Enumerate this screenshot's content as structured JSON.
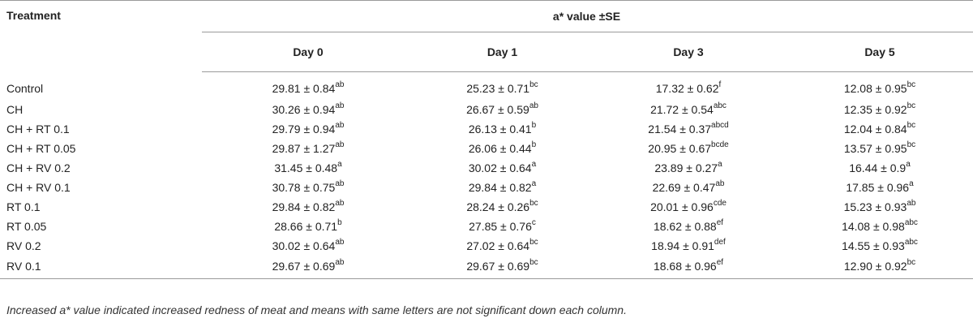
{
  "table": {
    "treatment_header": "Treatment",
    "group_header": "a* value ±SE",
    "day_headers": [
      "Day 0",
      "Day 1",
      "Day 3",
      "Day 5"
    ],
    "rows": [
      {
        "name": "Control",
        "cells": [
          {
            "v": "29.81 ± 0.84",
            "s": "ab"
          },
          {
            "v": "25.23 ± 0.71",
            "s": "bc"
          },
          {
            "v": "17.32 ± 0.62",
            "s": "f"
          },
          {
            "v": "12.08 ± 0.95",
            "s": "bc"
          }
        ]
      },
      {
        "name": "CH",
        "cells": [
          {
            "v": "30.26 ± 0.94",
            "s": "ab"
          },
          {
            "v": "26.67 ± 0.59",
            "s": "ab"
          },
          {
            "v": "21.72 ± 0.54",
            "s": "abc"
          },
          {
            "v": "12.35 ± 0.92",
            "s": "bc"
          }
        ]
      },
      {
        "name": "CH + RT 0.1",
        "cells": [
          {
            "v": "29.79 ± 0.94",
            "s": "ab"
          },
          {
            "v": "26.13 ± 0.41",
            "s": "b"
          },
          {
            "v": "21.54 ± 0.37",
            "s": "abcd"
          },
          {
            "v": "12.04 ± 0.84",
            "s": "bc"
          }
        ]
      },
      {
        "name": "CH + RT 0.05",
        "cells": [
          {
            "v": "29.87 ± 1.27",
            "s": "ab"
          },
          {
            "v": "26.06 ± 0.44",
            "s": "b"
          },
          {
            "v": "20.95 ± 0.67",
            "s": "bcde"
          },
          {
            "v": "13.57 ± 0.95",
            "s": "bc"
          }
        ]
      },
      {
        "name": "CH + RV 0.2",
        "cells": [
          {
            "v": "31.45 ± 0.48",
            "s": "a"
          },
          {
            "v": "30.02 ± 0.64",
            "s": "a"
          },
          {
            "v": "23.89 ± 0.27",
            "s": "a"
          },
          {
            "v": "16.44 ± 0.9",
            "s": "a"
          }
        ]
      },
      {
        "name": "CH + RV 0.1",
        "cells": [
          {
            "v": "30.78 ± 0.75",
            "s": "ab"
          },
          {
            "v": "29.84 ± 0.82",
            "s": "a"
          },
          {
            "v": "22.69 ± 0.47",
            "s": "ab"
          },
          {
            "v": "17.85 ± 0.96",
            "s": "a"
          }
        ]
      },
      {
        "name": "RT 0.1",
        "cells": [
          {
            "v": "29.84 ± 0.82",
            "s": "ab"
          },
          {
            "v": "28.24 ± 0.26",
            "s": "bc"
          },
          {
            "v": "20.01 ± 0.96",
            "s": "cde"
          },
          {
            "v": "15.23 ± 0.93",
            "s": "ab"
          }
        ]
      },
      {
        "name": "RT 0.05",
        "cells": [
          {
            "v": "28.66 ± 0.71",
            "s": "b"
          },
          {
            "v": "27.85 ± 0.76",
            "s": "c"
          },
          {
            "v": "18.62 ± 0.88",
            "s": "ef"
          },
          {
            "v": "14.08 ± 0.98",
            "s": "abc"
          }
        ]
      },
      {
        "name": "RV 0.2",
        "cells": [
          {
            "v": "30.02 ± 0.64",
            "s": "ab"
          },
          {
            "v": "27.02 ± 0.64",
            "s": "bc"
          },
          {
            "v": "18.94 ± 0.91",
            "s": "def"
          },
          {
            "v": "14.55 ± 0.93",
            "s": "abc"
          }
        ]
      },
      {
        "name": "RV 0.1",
        "cells": [
          {
            "v": "29.67 ± 0.69",
            "s": "ab"
          },
          {
            "v": "29.67 ± 0.69",
            "s": "bc"
          },
          {
            "v": "18.68 ± 0.96",
            "s": "ef"
          },
          {
            "v": "12.90 ± 0.92",
            "s": "bc"
          }
        ]
      }
    ],
    "footnote": "Increased a* value indicated increased redness of meat and means with same letters are not significant down each column."
  }
}
